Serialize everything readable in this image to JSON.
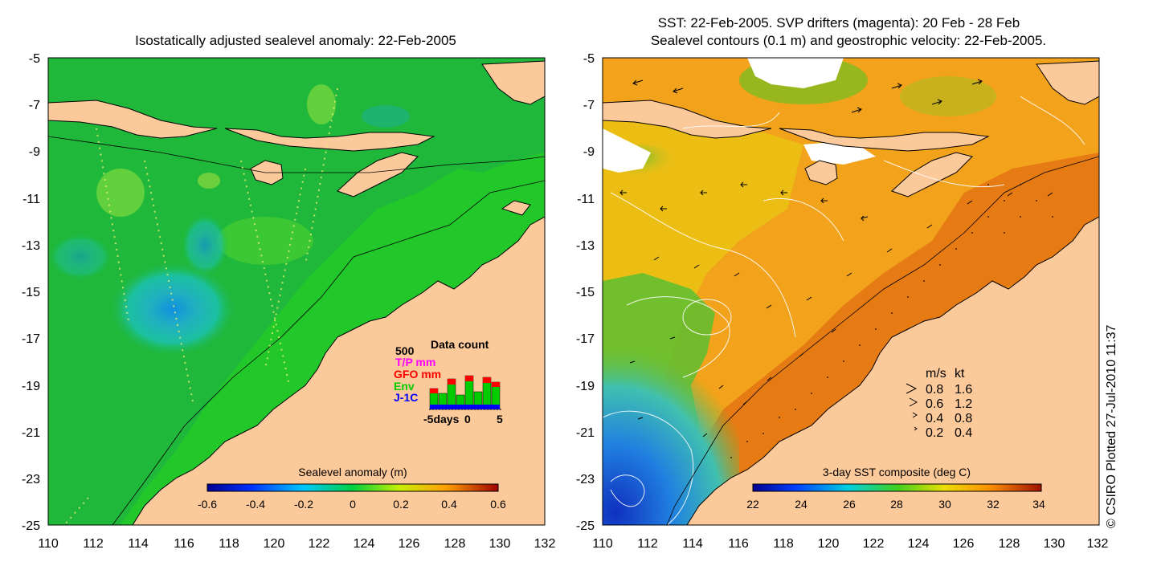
{
  "left_map": {
    "title": "Isostatically adjusted sealevel anomaly: 22-Feb-2005",
    "x_ticks": [
      "110",
      "112",
      "114",
      "116",
      "118",
      "120",
      "122",
      "124",
      "126",
      "128",
      "130",
      "132"
    ],
    "y_ticks": [
      "-5",
      "-7",
      "-9",
      "-11",
      "-13",
      "-15",
      "-17",
      "-19",
      "-21",
      "-23",
      "-25"
    ],
    "colorbar": {
      "label": "Sealevel anomaly (m)",
      "ticks": [
        "-0.6",
        "-0.4",
        "-0.2",
        "0",
        "0.2",
        "0.4",
        "0.6"
      ]
    },
    "inset": {
      "title": "Data count",
      "max_label": "500",
      "series": [
        {
          "name": "T/P mm",
          "color": "#ff00ff"
        },
        {
          "name": "GFO mm",
          "color": "#ff0000"
        },
        {
          "name": "Env",
          "color": "#00cc00"
        },
        {
          "name": "J-1C",
          "color": "#0000ff"
        }
      ],
      "x_labels": [
        "-5days",
        "0",
        "5"
      ]
    }
  },
  "right_map": {
    "title_line1": "SST: 22-Feb-2005. SVP drifters (magenta): 20 Feb - 28 Feb",
    "title_line2": "Sealevel contours (0.1 m) and geostrophic velocity: 22-Feb-2005.",
    "x_ticks": [
      "110",
      "112",
      "114",
      "116",
      "118",
      "120",
      "122",
      "124",
      "126",
      "128",
      "130",
      "132"
    ],
    "y_ticks": [
      "-5",
      "-7",
      "-9",
      "-11",
      "-13",
      "-15",
      "-17",
      "-19",
      "-21",
      "-23",
      "-25"
    ],
    "colorbar": {
      "label": "3-day SST composite (deg C)",
      "ticks": [
        "22",
        "24",
        "26",
        "28",
        "30",
        "32",
        "34"
      ]
    },
    "velocity_legend": {
      "header_ms": "m/s",
      "header_kt": "kt",
      "rows": [
        {
          "ms": "0.8",
          "kt": "1.6"
        },
        {
          "ms": "0.6",
          "kt": "1.2"
        },
        {
          "ms": "0.4",
          "kt": "0.8"
        },
        {
          "ms": "0.2",
          "kt": "0.4"
        }
      ]
    }
  },
  "credit": "© CSIRO Plotted 27-Jul-2010 11:37",
  "colors": {
    "land": "#fcc99a",
    "ocean_green": "#1fb83a",
    "shelf_green": "#22c829",
    "sst_orange": "#f3a21b"
  }
}
